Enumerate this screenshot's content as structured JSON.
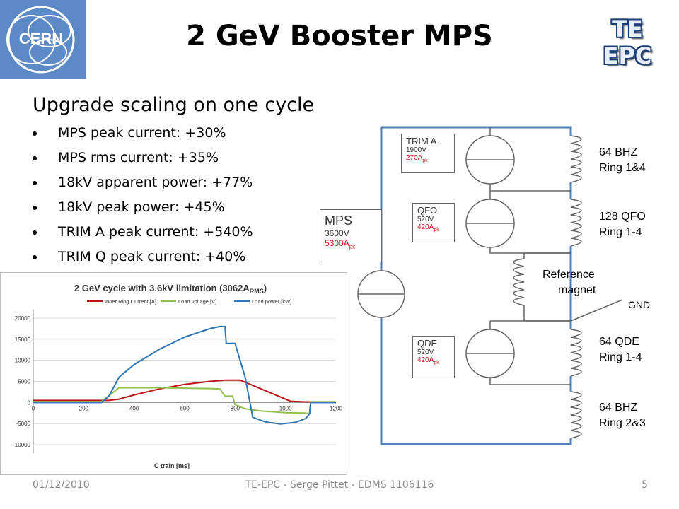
{
  "slide": {
    "title": "2 GeV Booster MPS",
    "logo_text": "CERN",
    "brand_line1": "TE",
    "brand_line2": "EPC",
    "subtitle": "Upgrade scaling on one cycle",
    "bullets": [
      "MPS peak current: +30%",
      "MPS rms current: +35%",
      "18kV apparent power: +77%",
      "18kV peak power: +45%",
      "TRIM A peak current: +540%",
      "TRIM Q peak current: +40%"
    ]
  },
  "circuit": {
    "mps": {
      "name": "MPS",
      "voltage": "3600V",
      "current": "5300A",
      "current_sub": "pk"
    },
    "trim_a": {
      "name": "TRIM A",
      "voltage": "1900V",
      "current": "270A",
      "current_sub": "pk"
    },
    "qfo": {
      "name": "QFO",
      "voltage": "520V",
      "current": "420A",
      "current_sub": "pk"
    },
    "qde": {
      "name": "QDE",
      "voltage": "520V",
      "current": "420A",
      "current_sub": "pk"
    },
    "coils": [
      {
        "line1": "64 BHZ",
        "line2": "Ring 1&4"
      },
      {
        "line1": "128 QFO",
        "line2": "Ring 1-4"
      },
      {
        "line1": "Reference",
        "line2": "magnet"
      },
      {
        "line1": "64 QDE",
        "line2": "Ring 1-4"
      },
      {
        "line1": "64 BHZ",
        "line2": "Ring 2&3"
      }
    ],
    "gnd": "GND",
    "colors": {
      "wire": "#4f81bd",
      "accent_red": "#c0161b"
    }
  },
  "chart_data": {
    "type": "line",
    "title_main": "2 GeV cycle with 3.6kV limitation (3062A",
    "title_sub": "RMS",
    "title_end": ")",
    "xlabel": "C train [ms]",
    "xlim": [
      0,
      1200
    ],
    "ylim": [
      -12000,
      22000
    ],
    "x_ticks": [
      0,
      200,
      400,
      600,
      800,
      1000,
      1200
    ],
    "y_ticks": [
      20000,
      15000,
      10000,
      5000,
      0,
      -5000,
      -10000
    ],
    "series": [
      {
        "name": "Inner Ring Current [A]",
        "color": "#c0161b",
        "points": [
          [
            0,
            500
          ],
          [
            270,
            500
          ],
          [
            300,
            500
          ],
          [
            340,
            800
          ],
          [
            400,
            1800
          ],
          [
            500,
            3200
          ],
          [
            600,
            4300
          ],
          [
            700,
            5000
          ],
          [
            760,
            5300
          ],
          [
            820,
            5300
          ],
          [
            860,
            4300
          ],
          [
            920,
            2800
          ],
          [
            980,
            1300
          ],
          [
            1020,
            300
          ],
          [
            1080,
            150
          ],
          [
            1200,
            150
          ]
        ]
      },
      {
        "name": "Load voltage [V]",
        "color": "#92c050",
        "points": [
          [
            0,
            200
          ],
          [
            270,
            200
          ],
          [
            300,
            1600
          ],
          [
            340,
            3500
          ],
          [
            400,
            3500
          ],
          [
            500,
            3500
          ],
          [
            600,
            3400
          ],
          [
            700,
            3300
          ],
          [
            740,
            3200
          ],
          [
            760,
            1500
          ],
          [
            790,
            1500
          ],
          [
            800,
            -500
          ],
          [
            840,
            -1500
          ],
          [
            900,
            -2000
          ],
          [
            1000,
            -2400
          ],
          [
            1080,
            -2500
          ],
          [
            1095,
            -2700
          ],
          [
            1100,
            200
          ],
          [
            1200,
            200
          ]
        ]
      },
      {
        "name": "Load power [kW]",
        "color": "#2e75b6",
        "points": [
          [
            0,
            0
          ],
          [
            270,
            0
          ],
          [
            300,
            1500
          ],
          [
            340,
            6000
          ],
          [
            400,
            9000
          ],
          [
            500,
            12600
          ],
          [
            600,
            15500
          ],
          [
            700,
            17500
          ],
          [
            740,
            18000
          ],
          [
            760,
            18000
          ],
          [
            765,
            14000
          ],
          [
            800,
            14000
          ],
          [
            840,
            6000
          ],
          [
            870,
            -3500
          ],
          [
            920,
            -4600
          ],
          [
            980,
            -5100
          ],
          [
            1040,
            -4700
          ],
          [
            1080,
            -3800
          ],
          [
            1095,
            -2700
          ],
          [
            1100,
            0
          ],
          [
            1200,
            0
          ]
        ]
      }
    ]
  },
  "footer": {
    "date": "01/12/2010",
    "center": "TE-EPC - Serge Pittet - EDMS 1106116",
    "page": "5"
  }
}
